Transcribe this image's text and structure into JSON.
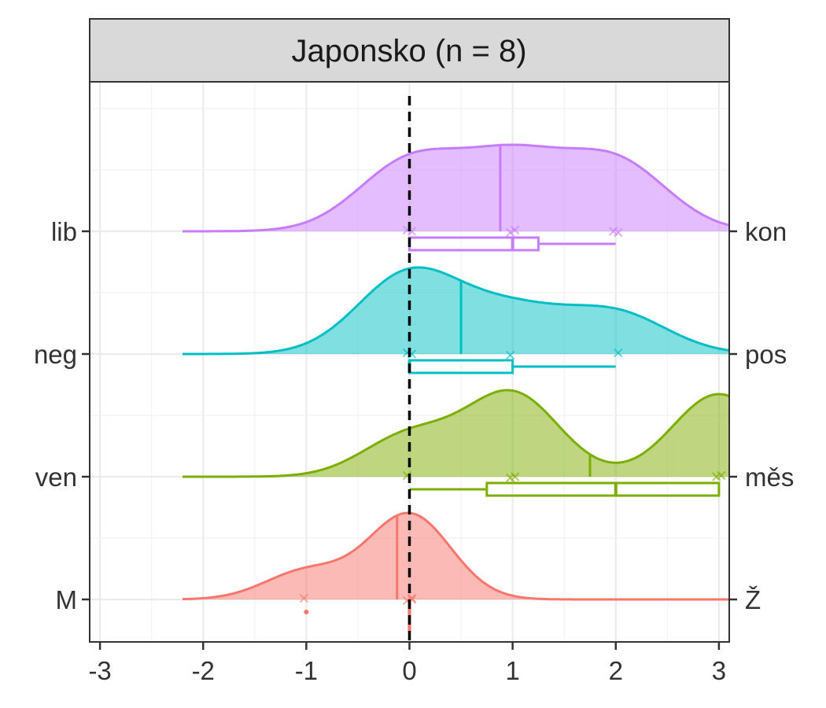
{
  "chart_data": {
    "type": "ridgeline-density-boxplot",
    "title": "Japonsko (n = 8)",
    "xlim": [
      -3.1,
      3.1
    ],
    "x_ticks": [
      "-3",
      "-2",
      "-1",
      "0",
      "1",
      "2",
      "3"
    ],
    "x_tick_values": [
      -3,
      -2,
      -1,
      0,
      1,
      2,
      3
    ],
    "reference_line": {
      "x": 0,
      "style": "dashed"
    },
    "grid": true,
    "rows": [
      {
        "left_label": "lib",
        "right_label": "kon",
        "color": "#C77CFF",
        "density_peak_at": 0.0,
        "mean": 0.88,
        "points": [
          0,
          0,
          1,
          1,
          2,
          2
        ],
        "box": {
          "min": 0,
          "q1": 0,
          "median": 1,
          "q3": 1.25,
          "max": 2
        }
      },
      {
        "left_label": "neg",
        "right_label": "pos",
        "color": "#00BFC4",
        "density_peak_at": 0.0,
        "mean": 0.5,
        "points": [
          0,
          0,
          1,
          2
        ],
        "box": {
          "min": 0,
          "q1": 0,
          "median": 0,
          "q3": 1,
          "max": 2
        }
      },
      {
        "left_label": "ven",
        "right_label": "měs",
        "color": "#7CAE00",
        "density_peak_at": 3.0,
        "mean": 1.75,
        "points": [
          0,
          1,
          1,
          3,
          3
        ],
        "box": {
          "min": 0,
          "q1": 0.75,
          "median": 2,
          "q3": 3,
          "max": 3
        }
      },
      {
        "left_label": "M",
        "right_label": "Ž",
        "color": "#F8766D",
        "density_peak_at": 0.0,
        "mean": -0.12,
        "points": [
          -1,
          0,
          0,
          0
        ],
        "box": {
          "min": 0,
          "q1": 0,
          "median": 0,
          "q3": 0,
          "max": 0
        },
        "outliers": [
          -1
        ]
      }
    ]
  }
}
